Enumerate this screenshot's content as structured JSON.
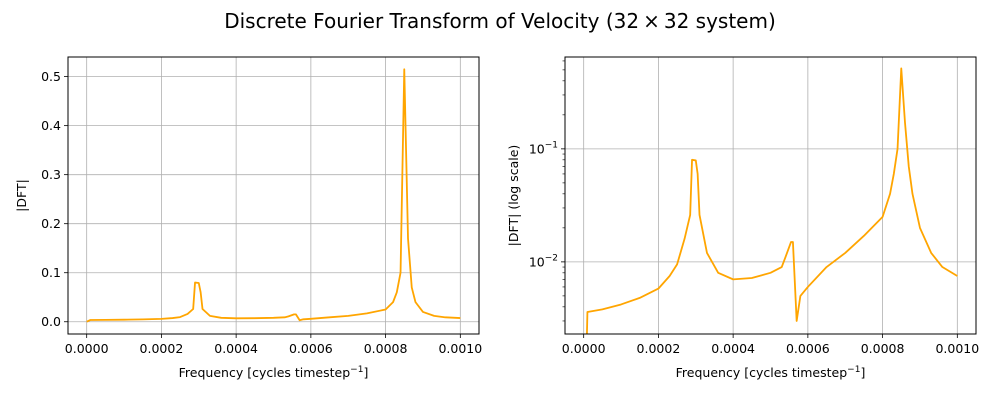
{
  "figure": {
    "title": "Discrete Fourier Transform of Velocity (32 × 32 system)"
  },
  "colors": {
    "line": "#ffa500",
    "grid": "#b0b0b0",
    "axes": "#000000"
  },
  "chart_data": [
    {
      "type": "line",
      "scale": "linear",
      "xlabel": "Frequency [cycles timestep⁻¹]",
      "ylabel": "|DFT|",
      "xlim": [
        -5e-05,
        0.00105
      ],
      "ylim": [
        -0.025,
        0.54
      ],
      "xticks": [
        0,
        0.0002,
        0.0004,
        0.0006,
        0.0008,
        0.001
      ],
      "xtick_labels": [
        "0.0000",
        "0.0002",
        "0.0004",
        "0.0006",
        "0.0008",
        "0.0010"
      ],
      "yticks": [
        0,
        0.1,
        0.2,
        0.3,
        0.4,
        0.5
      ],
      "ytick_labels": [
        "0.0",
        "0.1",
        "0.2",
        "0.3",
        "0.4",
        "0.5"
      ],
      "grid": true,
      "series": [
        {
          "x": [
            0.0,
            1e-05,
            5e-05,
            0.0001,
            0.00015,
            0.0002,
            0.00023,
            0.00025,
            0.00027,
            0.000285,
            0.00029,
            0.0003,
            0.000305,
            0.00031,
            0.00033,
            0.00036,
            0.0004,
            0.00045,
            0.0005,
            0.00053,
            0.00054,
            0.000555,
            0.00056,
            0.00057,
            0.00058,
            0.0006,
            0.00065,
            0.0007,
            0.00075,
            0.0008,
            0.00082,
            0.00083,
            0.00084,
            0.00085,
            0.00086,
            0.00087,
            0.00088,
            0.0009,
            0.00093,
            0.00096,
            0.001
          ],
          "y": [
            0.0,
            0.0036,
            0.0038,
            0.0042,
            0.0048,
            0.0058,
            0.0075,
            0.0095,
            0.016,
            0.026,
            0.08,
            0.079,
            0.06,
            0.026,
            0.012,
            0.008,
            0.007,
            0.0072,
            0.008,
            0.009,
            0.011,
            0.015,
            0.015,
            0.003,
            0.005,
            0.006,
            0.009,
            0.012,
            0.017,
            0.025,
            0.04,
            0.06,
            0.1,
            0.515,
            0.17,
            0.07,
            0.04,
            0.02,
            0.012,
            0.009,
            0.0075
          ]
        }
      ]
    },
    {
      "type": "line",
      "scale": "log",
      "xlabel": "Frequency [cycles timestep⁻¹]",
      "ylabel": "|DFT| (log scale)",
      "xlim": [
        -5e-05,
        0.00105
      ],
      "ylim": [
        0.0023,
        0.65
      ],
      "xticks": [
        0,
        0.0002,
        0.0004,
        0.0006,
        0.0008,
        0.001
      ],
      "xtick_labels": [
        "0.0000",
        "0.0002",
        "0.0004",
        "0.0006",
        "0.0008",
        "0.0010"
      ],
      "yticks": [
        0.01,
        0.1
      ],
      "ytick_bases": [
        "10",
        "10"
      ],
      "ytick_exponents": [
        "−2",
        "−1"
      ],
      "grid": true,
      "series": [
        {
          "x": [
            8e-06,
            1e-05,
            5e-05,
            0.0001,
            0.00015,
            0.0002,
            0.00023,
            0.00025,
            0.00027,
            0.000285,
            0.00029,
            0.0003,
            0.000305,
            0.00031,
            0.00033,
            0.00036,
            0.0004,
            0.00045,
            0.0005,
            0.00053,
            0.00054,
            0.000555,
            0.00056,
            0.00057,
            0.00058,
            0.0006,
            0.00065,
            0.0007,
            0.00075,
            0.0008,
            0.00082,
            0.00083,
            0.00084,
            0.00085,
            0.00086,
            0.00087,
            0.00088,
            0.0009,
            0.00093,
            0.00096,
            0.001
          ],
          "y": [
            0.0018,
            0.0036,
            0.0038,
            0.0042,
            0.0048,
            0.0058,
            0.0075,
            0.0095,
            0.016,
            0.026,
            0.08,
            0.079,
            0.06,
            0.026,
            0.012,
            0.008,
            0.007,
            0.0072,
            0.008,
            0.009,
            0.011,
            0.015,
            0.015,
            0.003,
            0.005,
            0.006,
            0.009,
            0.012,
            0.017,
            0.025,
            0.04,
            0.06,
            0.1,
            0.515,
            0.17,
            0.07,
            0.04,
            0.02,
            0.012,
            0.009,
            0.0075
          ]
        }
      ]
    }
  ]
}
